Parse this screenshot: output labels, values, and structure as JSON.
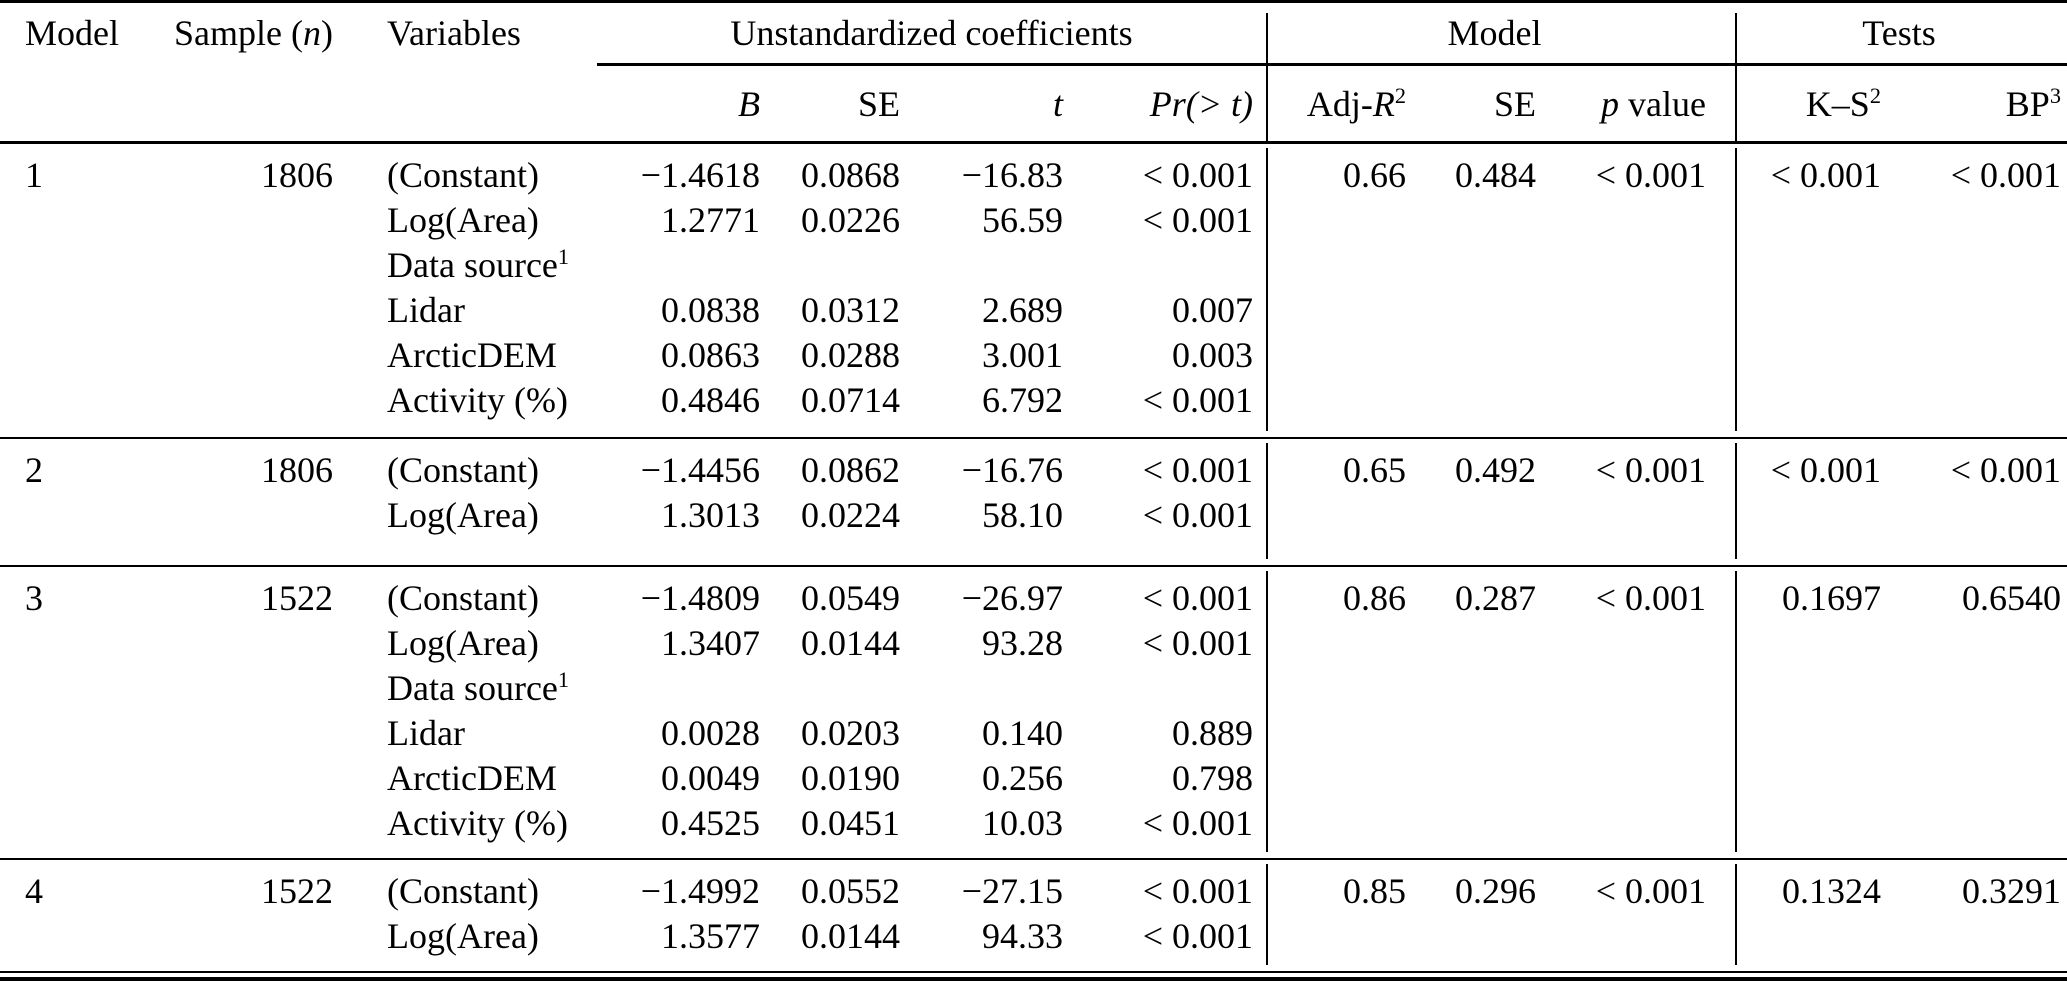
{
  "header": {
    "model": "Model",
    "sample_prefix": "Sample (",
    "sample_n": "n",
    "sample_suffix": ")",
    "variables": "Variables",
    "group_coeffs": "Unstandardized coefficients",
    "group_model": "Model",
    "group_tests": "Tests",
    "sub": {
      "b": "B",
      "se": "SE",
      "t": "t",
      "pr": "Pr(> t)",
      "adj_prefix": "Adj-",
      "adj_r": "R",
      "adj_sup": "2",
      "se2": "SE",
      "p": "p",
      "p_word": " value",
      "ks": "K–S",
      "ks_sup": "2",
      "bp": "BP",
      "bp_sup": "3"
    }
  },
  "blocks": [
    {
      "model": "1",
      "sample": "1806",
      "rows": [
        {
          "variable": "(Constant)",
          "B": "−1.4618",
          "SE": "0.0868",
          "t": "−16.83",
          "pr": "< 0.001"
        },
        {
          "variable": "Log(Area)",
          "B": "1.2771",
          "SE": "0.0226",
          "t": "56.59",
          "pr": "< 0.001"
        },
        {
          "variable": "Data source",
          "sup": "1"
        },
        {
          "variable": "Lidar",
          "B": "0.0838",
          "SE": "0.0312",
          "t": "2.689",
          "pr": "0.007"
        },
        {
          "variable": "ArcticDEM",
          "B": "0.0863",
          "SE": "0.0288",
          "t": "3.001",
          "pr": "0.003"
        },
        {
          "variable": "Activity (%)",
          "B": "0.4846",
          "SE": "0.0714",
          "t": "6.792",
          "pr": "< 0.001"
        }
      ],
      "adj_r2": "0.66",
      "model_se": "0.484",
      "p_value": "< 0.001",
      "ks": "< 0.001",
      "bp": "< 0.001"
    },
    {
      "model": "2",
      "sample": "1806",
      "rows": [
        {
          "variable": "(Constant)",
          "B": "−1.4456",
          "SE": "0.0862",
          "t": "−16.76",
          "pr": "< 0.001"
        },
        {
          "variable": "Log(Area)",
          "B": "1.3013",
          "SE": "0.0224",
          "t": "58.10",
          "pr": "< 0.001"
        }
      ],
      "adj_r2": "0.65",
      "model_se": "0.492",
      "p_value": "< 0.001",
      "ks": "< 0.001",
      "bp": "< 0.001"
    },
    {
      "model": "3",
      "sample": "1522",
      "rows": [
        {
          "variable": "(Constant)",
          "B": "−1.4809",
          "SE": "0.0549",
          "t": "−26.97",
          "pr": "< 0.001"
        },
        {
          "variable": "Log(Area)",
          "B": "1.3407",
          "SE": "0.0144",
          "t": "93.28",
          "pr": "< 0.001"
        },
        {
          "variable": "Data source",
          "sup": "1"
        },
        {
          "variable": "Lidar",
          "B": "0.0028",
          "SE": "0.0203",
          "t": "0.140",
          "pr": "0.889"
        },
        {
          "variable": "ArcticDEM",
          "B": "0.0049",
          "SE": "0.0190",
          "t": "0.256",
          "pr": "0.798"
        },
        {
          "variable": "Activity (%)",
          "B": "0.4525",
          "SE": "0.0451",
          "t": "10.03",
          "pr": "< 0.001"
        }
      ],
      "adj_r2": "0.86",
      "model_se": "0.287",
      "p_value": "< 0.001",
      "ks": "0.1697",
      "bp": "0.6540"
    },
    {
      "model": "4",
      "sample": "1522",
      "rows": [
        {
          "variable": "(Constant)",
          "B": "−1.4992",
          "SE": "0.0552",
          "t": "−27.15",
          "pr": "< 0.001"
        },
        {
          "variable": "Log(Area)",
          "B": "1.3577",
          "SE": "0.0144",
          "t": "94.33",
          "pr": "< 0.001"
        }
      ],
      "adj_r2": "0.85",
      "model_se": "0.296",
      "p_value": "< 0.001",
      "ks": "0.1324",
      "bp": "0.3291"
    }
  ]
}
